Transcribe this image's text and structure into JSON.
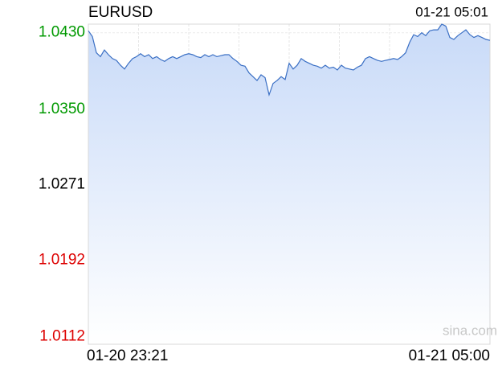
{
  "chart_data": {
    "type": "area",
    "title": "EURUSD",
    "timestamp": "01-21 05:01",
    "watermark": "sina.com",
    "categories": [
      "01-20 23:21",
      null,
      null,
      null,
      null,
      null,
      null,
      null,
      null,
      null,
      null,
      null,
      null,
      null,
      null,
      null,
      null,
      null,
      null,
      null,
      null,
      null,
      null,
      null,
      null,
      null,
      null,
      null,
      null,
      null,
      null,
      null,
      null,
      null,
      null,
      null,
      null,
      null,
      null,
      null,
      null,
      null,
      null,
      null,
      null,
      null,
      null,
      null,
      null,
      null,
      null,
      null,
      null,
      null,
      null,
      null,
      null,
      null,
      null,
      null,
      null,
      null,
      null,
      null,
      null,
      null,
      null,
      null,
      null,
      null,
      null,
      null,
      null,
      null,
      null,
      null,
      null,
      null,
      null,
      null,
      null,
      null,
      null,
      null,
      null,
      null,
      null,
      null,
      null,
      null,
      null,
      null,
      null,
      null,
      null,
      null,
      null,
      null,
      null,
      null,
      "01-21 05:00"
    ],
    "values": [
      1.0432,
      1.0426,
      1.0409,
      1.0405,
      1.0412,
      1.0407,
      1.0403,
      1.0401,
      1.0396,
      1.0392,
      1.0398,
      1.0403,
      1.0405,
      1.0408,
      1.0405,
      1.0407,
      1.0403,
      1.0405,
      1.0402,
      1.04,
      1.0403,
      1.0405,
      1.0403,
      1.0405,
      1.0407,
      1.0408,
      1.0407,
      1.0405,
      1.0404,
      1.0407,
      1.0405,
      1.0407,
      1.0405,
      1.0406,
      1.0407,
      1.0407,
      1.0403,
      1.04,
      1.0396,
      1.0395,
      1.0388,
      1.0384,
      1.038,
      1.0386,
      1.0383,
      1.0365,
      1.0377,
      1.038,
      1.0384,
      1.0381,
      1.0398,
      1.0392,
      1.0396,
      1.0403,
      1.04,
      1.0398,
      1.0396,
      1.0395,
      1.0393,
      1.0396,
      1.0393,
      1.0394,
      1.0391,
      1.0396,
      1.0393,
      1.0392,
      1.0391,
      1.0394,
      1.0396,
      1.0403,
      1.0405,
      1.0403,
      1.0401,
      1.04,
      1.0401,
      1.0402,
      1.0403,
      1.0402,
      1.0405,
      1.0409,
      1.042,
      1.0428,
      1.0426,
      1.043,
      1.0427,
      1.0432,
      1.0433,
      1.0433,
      1.0439,
      1.0437,
      1.0425,
      1.0423,
      1.0427,
      1.043,
      1.0433,
      1.0428,
      1.0425,
      1.0427,
      1.0425,
      1.0423,
      1.0422
    ],
    "color": "#3a6fc4",
    "ylim": [
      1.0104,
      1.0439
    ],
    "yticks": [
      {
        "value": 1.043,
        "label": "1.0430"
      },
      {
        "value": 1.035,
        "label": "1.0350"
      },
      1.0271,
      1.0192,
      1.0112
    ],
    "ytick_colors": [
      "#009900",
      "#009900",
      "#000000",
      "#dd0000",
      "#dd0000"
    ],
    "grid": true
  }
}
